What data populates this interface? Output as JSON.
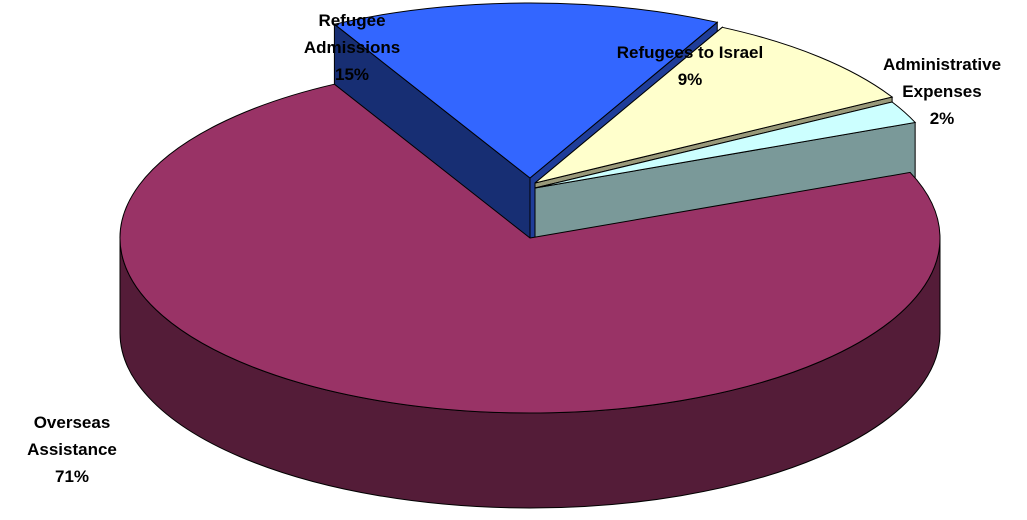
{
  "chart_data": {
    "type": "pie",
    "title": "",
    "three_d": true,
    "exploded": [
      "Refugee Admissions",
      "Refugees to Israel",
      "Administrative Expenses"
    ],
    "slices": [
      {
        "label_lines": [
          "Overseas",
          "Assistance"
        ],
        "name": "Overseas Assistance",
        "value": 71,
        "value_label": "71%",
        "color": "#993366"
      },
      {
        "label_lines": [
          "Refugee",
          "Admissions"
        ],
        "name": "Refugee Admissions",
        "value": 15,
        "value_label": "15%",
        "color": "#3366ff"
      },
      {
        "label_lines": [
          "Refugees to Israel"
        ],
        "name": "Refugees to Israel",
        "value": 9,
        "value_label": "9%",
        "color": "#ffffcc"
      },
      {
        "label_lines": [
          "Administrative",
          "Expenses"
        ],
        "name": "Administrative Expenses",
        "value": 2,
        "value_label": "2%",
        "color": "#ccffff"
      }
    ]
  }
}
